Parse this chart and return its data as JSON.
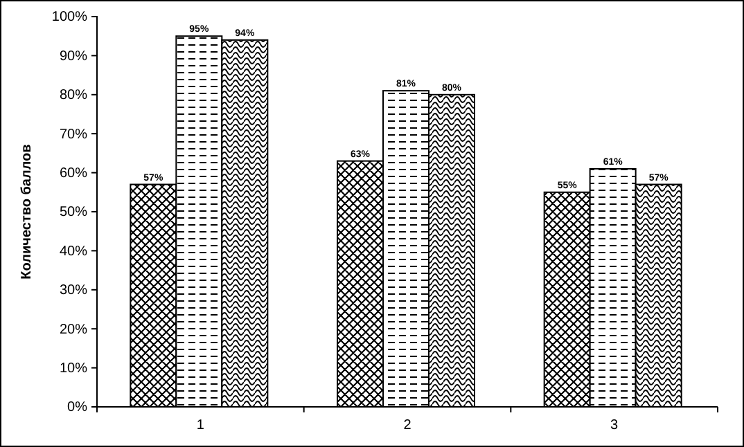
{
  "chart_data": {
    "type": "bar",
    "ylabel": "Количество баллов",
    "categories": [
      "1",
      "2",
      "3"
    ],
    "series": [
      {
        "color": "#000000",
        "values": [
          57,
          63,
          55
        ],
        "value_labels": [
          "57%",
          "63%",
          "55%"
        ]
      },
      {
        "color": "#000000",
        "values": [
          95,
          81,
          61
        ],
        "value_labels": [
          "95%",
          "81%",
          "61%"
        ]
      },
      {
        "color": "#000000",
        "values": [
          94,
          80,
          57
        ],
        "value_labels": [
          "94%",
          "80%",
          "57%"
        ]
      }
    ],
    "ylim": [
      0,
      100
    ],
    "yticks": [
      {
        "value": 0,
        "label": "0%"
      },
      {
        "value": 10,
        "label": "10%"
      },
      {
        "value": 20,
        "label": "20%"
      },
      {
        "value": 30,
        "label": "30%"
      },
      {
        "value": 40,
        "label": "40%"
      },
      {
        "value": 50,
        "label": "50%"
      },
      {
        "value": 60,
        "label": "60%"
      },
      {
        "value": 70,
        "label": "70%"
      },
      {
        "value": 80,
        "label": "80%"
      },
      {
        "value": 90,
        "label": "90%"
      },
      {
        "value": 100,
        "label": "100%"
      }
    ],
    "grid": false
  }
}
